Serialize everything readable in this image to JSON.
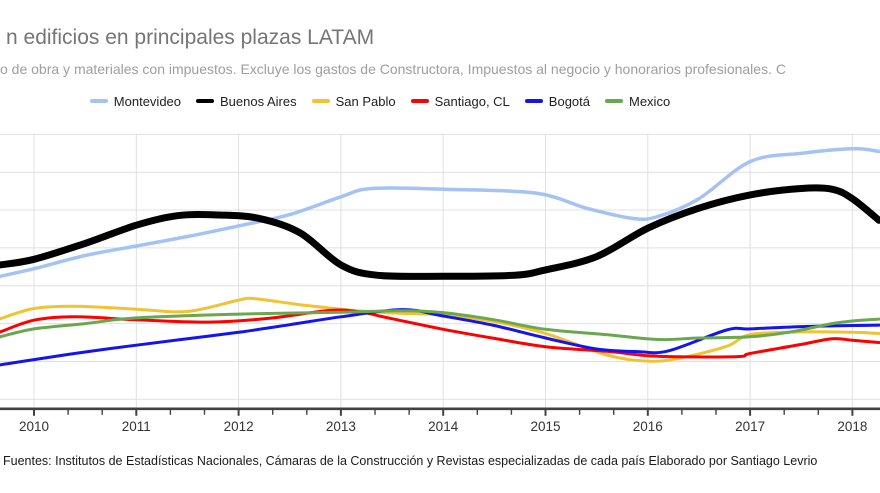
{
  "header": {
    "title": "n edificios en principales plazas LATAM",
    "subtitle": "o de obra y materiales con impuestos. Excluye los gastos de Constructora, Impuestos al negocio y honorarios profesionales. C"
  },
  "legend": {
    "items": [
      {
        "label": "Montevideo",
        "color": "#a4c2f4"
      },
      {
        "label": "Buenos Aires",
        "color": "#000000"
      },
      {
        "label": "San Pablo",
        "color": "#f1c232"
      },
      {
        "label": "Santiago, CL",
        "color": "#ff0000"
      },
      {
        "label": "Bogotá",
        "color": "#1414ee"
      },
      {
        "label": "Mexico",
        "color": "#6aa84f"
      }
    ]
  },
  "footer": {
    "text": "Fuentes: Institutos de Estadísticas Nacionales, Cámaras de la Construcción y Revistas especializadas de cada país Elaborado por Santiago Levrio"
  },
  "chart_data": {
    "type": "line",
    "title": "n edificios en principales plazas LATAM",
    "x_axis": {
      "tick_labels": [
        "2010",
        "2011",
        "2012",
        "2013",
        "2014",
        "2015",
        "2016",
        "2017",
        "2018"
      ],
      "visible_range_years": [
        2009.67,
        2018.26
      ],
      "minor_ticks_per_year": 3,
      "gridlines_at_years": [
        2010,
        2011,
        2012,
        2013,
        2014,
        2015,
        2016,
        2017,
        2018
      ]
    },
    "y_axis": {
      "labels_visible": false,
      "note": "y-axis tick labels are cropped out of the visible image; values below are in gridline units (bottom visible gridline = 0, +1 per gridline, 8 gridlines visible)",
      "gridline_values": [
        0,
        1,
        2,
        3,
        4,
        5,
        6,
        7
      ]
    },
    "grid": true,
    "legend_position": "top",
    "colors": {
      "grid": "#e0e0e0",
      "axis": "#424242",
      "tick": "#424242",
      "year_label": "#333333"
    },
    "series": [
      {
        "name": "Montevideo",
        "color": "#a4c2f4",
        "width": 3.5,
        "points": [
          [
            2009.67,
            3.25
          ],
          [
            2010,
            3.45
          ],
          [
            2010.5,
            3.8
          ],
          [
            2011,
            4.05
          ],
          [
            2011.5,
            4.3
          ],
          [
            2012,
            4.58
          ],
          [
            2012.5,
            4.88
          ],
          [
            2013,
            5.35
          ],
          [
            2013.3,
            5.57
          ],
          [
            2014,
            5.55
          ],
          [
            2014.9,
            5.45
          ],
          [
            2015.4,
            5.05
          ],
          [
            2015.85,
            4.78
          ],
          [
            2016.1,
            4.83
          ],
          [
            2016.5,
            5.3
          ],
          [
            2017,
            6.28
          ],
          [
            2017.5,
            6.5
          ],
          [
            2018,
            6.62
          ],
          [
            2018.26,
            6.55
          ]
        ]
      },
      {
        "name": "Buenos Aires",
        "color": "#000000",
        "width": 7,
        "points": [
          [
            2009.67,
            3.55
          ],
          [
            2010,
            3.7
          ],
          [
            2010.5,
            4.12
          ],
          [
            2011,
            4.6
          ],
          [
            2011.4,
            4.85
          ],
          [
            2011.8,
            4.87
          ],
          [
            2012.2,
            4.78
          ],
          [
            2012.6,
            4.4
          ],
          [
            2013,
            3.55
          ],
          [
            2013.35,
            3.28
          ],
          [
            2014,
            3.25
          ],
          [
            2014.7,
            3.28
          ],
          [
            2015,
            3.42
          ],
          [
            2015.5,
            3.77
          ],
          [
            2016,
            4.52
          ],
          [
            2016.5,
            5.05
          ],
          [
            2017,
            5.4
          ],
          [
            2017.5,
            5.57
          ],
          [
            2017.8,
            5.55
          ],
          [
            2018,
            5.3
          ],
          [
            2018.26,
            4.73
          ]
        ]
      },
      {
        "name": "San Pablo",
        "color": "#f1c232",
        "width": 3,
        "points": [
          [
            2009.67,
            2.13
          ],
          [
            2010,
            2.4
          ],
          [
            2010.4,
            2.46
          ],
          [
            2011,
            2.38
          ],
          [
            2011.5,
            2.32
          ],
          [
            2012,
            2.62
          ],
          [
            2012.15,
            2.66
          ],
          [
            2012.6,
            2.5
          ],
          [
            2013,
            2.38
          ],
          [
            2013.5,
            2.28
          ],
          [
            2014,
            2.23
          ],
          [
            2014.5,
            2.05
          ],
          [
            2015,
            1.74
          ],
          [
            2015.6,
            1.17
          ],
          [
            2016,
            1.01
          ],
          [
            2016.3,
            1.08
          ],
          [
            2016.77,
            1.4
          ],
          [
            2017,
            1.71
          ],
          [
            2017.5,
            1.78
          ],
          [
            2018,
            1.77
          ],
          [
            2018.26,
            1.74
          ]
        ]
      },
      {
        "name": "Santiago, CL",
        "color": "#ff0000",
        "width": 3,
        "points": [
          [
            2009.67,
            1.78
          ],
          [
            2010,
            2.09
          ],
          [
            2010.4,
            2.18
          ],
          [
            2011,
            2.1
          ],
          [
            2011.7,
            2.04
          ],
          [
            2012.3,
            2.14
          ],
          [
            2012.9,
            2.35
          ],
          [
            2013.2,
            2.3
          ],
          [
            2013.48,
            2.14
          ],
          [
            2014,
            1.85
          ],
          [
            2014.5,
            1.61
          ],
          [
            2015,
            1.39
          ],
          [
            2015.63,
            1.26
          ],
          [
            2016,
            1.15
          ],
          [
            2016.4,
            1.12
          ],
          [
            2016.9,
            1.13
          ],
          [
            2017,
            1.21
          ],
          [
            2017.5,
            1.45
          ],
          [
            2017.8,
            1.6
          ],
          [
            2018,
            1.56
          ],
          [
            2018.26,
            1.5
          ]
        ]
      },
      {
        "name": "Bogotá",
        "color": "#1414ee",
        "width": 3,
        "points": [
          [
            2009.67,
            0.91
          ],
          [
            2010,
            1.05
          ],
          [
            2010.5,
            1.25
          ],
          [
            2011,
            1.43
          ],
          [
            2011.5,
            1.6
          ],
          [
            2012,
            1.77
          ],
          [
            2012.5,
            1.97
          ],
          [
            2013,
            2.18
          ],
          [
            2013.6,
            2.37
          ],
          [
            2014,
            2.2
          ],
          [
            2014.5,
            1.95
          ],
          [
            2015,
            1.62
          ],
          [
            2015.5,
            1.33
          ],
          [
            2015.9,
            1.26
          ],
          [
            2016.2,
            1.28
          ],
          [
            2016.77,
            1.83
          ],
          [
            2017,
            1.86
          ],
          [
            2017.5,
            1.92
          ],
          [
            2018,
            1.95
          ],
          [
            2018.26,
            1.96
          ]
        ]
      },
      {
        "name": "Mexico",
        "color": "#6aa84f",
        "width": 3,
        "points": [
          [
            2009.67,
            1.65
          ],
          [
            2010,
            1.86
          ],
          [
            2010.5,
            2.0
          ],
          [
            2011,
            2.15
          ],
          [
            2012,
            2.25
          ],
          [
            2013,
            2.3
          ],
          [
            2013.6,
            2.34
          ],
          [
            2014,
            2.29
          ],
          [
            2014.5,
            2.1
          ],
          [
            2015,
            1.85
          ],
          [
            2015.63,
            1.7
          ],
          [
            2016.1,
            1.58
          ],
          [
            2016.5,
            1.62
          ],
          [
            2017,
            1.65
          ],
          [
            2017.4,
            1.78
          ],
          [
            2017.8,
            2.0
          ],
          [
            2018,
            2.07
          ],
          [
            2018.26,
            2.12
          ]
        ]
      }
    ]
  }
}
